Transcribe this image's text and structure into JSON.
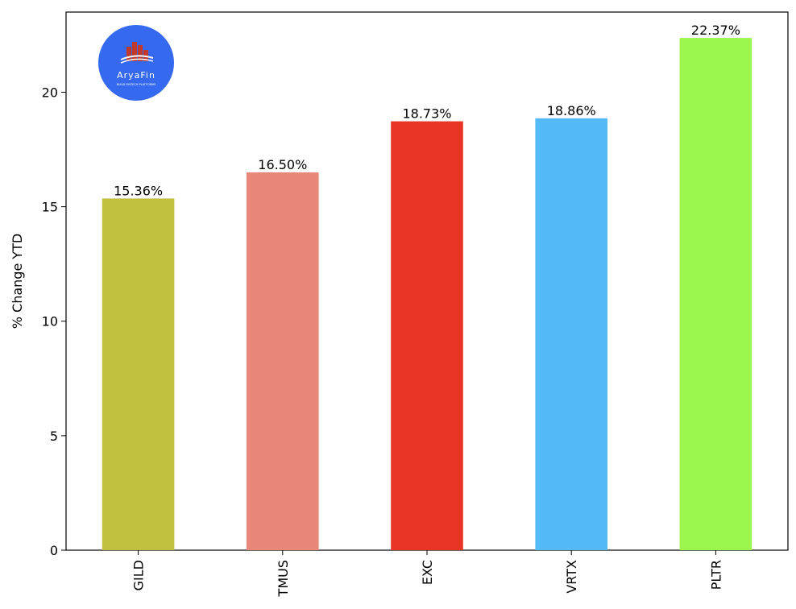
{
  "chart_data": {
    "type": "bar",
    "categories": [
      "GILD",
      "TMUS",
      "EXC",
      "VRTX",
      "PLTR"
    ],
    "values": [
      15.36,
      16.5,
      18.73,
      18.86,
      22.37
    ],
    "value_labels": [
      "15.36%",
      "16.50%",
      "18.73%",
      "18.86%",
      "22.37%"
    ],
    "colors": [
      "#c0bf3f",
      "#e88878",
      "#e83424",
      "#55bbf8",
      "#9cf54c"
    ],
    "ylabel": "% Change YTD",
    "ylim": [
      0,
      23.5
    ],
    "yticks": [
      0,
      5,
      10,
      15,
      20
    ],
    "ytick_labels": [
      "0",
      "5",
      "10",
      "15",
      "20"
    ],
    "grid": false,
    "legend": "none"
  },
  "logo": {
    "name": "AryaFin",
    "tagline": "BUILD FINTECH PLATFORMS",
    "color": "#3569f0",
    "icon": "bar-chart-building-icon"
  }
}
